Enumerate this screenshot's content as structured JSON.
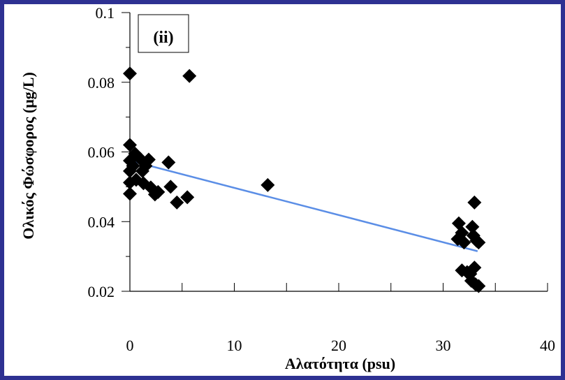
{
  "chart_data": {
    "type": "scatter",
    "panel_label": "(ii)",
    "xlabel": "Αλατότητα (psu)",
    "ylabel": "Ολικός Φώσφορος (μg/L)",
    "xlim": [
      0,
      40
    ],
    "ylim": [
      0.02,
      0.1
    ],
    "x_ticks": [
      0,
      10,
      20,
      30,
      40
    ],
    "y_ticks": [
      0.02,
      0.04,
      0.06,
      0.08,
      0.1
    ],
    "x_tick_labels": [
      "0",
      "10",
      "20",
      "30",
      "40"
    ],
    "y_tick_labels": [
      "0.02",
      "0.04",
      "0.06",
      "0.08",
      "0.1"
    ],
    "marker_color": "#000000",
    "trendline_color": "#5b8ee6",
    "trendline": {
      "x": [
        0,
        33.3
      ],
      "y": [
        0.0575,
        0.0315
      ]
    },
    "points": [
      {
        "x": 0.0,
        "y": 0.0825
      },
      {
        "x": 5.7,
        "y": 0.0818
      },
      {
        "x": 0.0,
        "y": 0.062
      },
      {
        "x": 0.5,
        "y": 0.0595
      },
      {
        "x": 0.0,
        "y": 0.0575
      },
      {
        "x": 0.3,
        "y": 0.056
      },
      {
        "x": 0.0,
        "y": 0.0545
      },
      {
        "x": 1.0,
        "y": 0.058
      },
      {
        "x": 1.5,
        "y": 0.056
      },
      {
        "x": 1.8,
        "y": 0.0578
      },
      {
        "x": 1.2,
        "y": 0.0545
      },
      {
        "x": 0.6,
        "y": 0.052
      },
      {
        "x": 0.0,
        "y": 0.0512
      },
      {
        "x": 0.0,
        "y": 0.048
      },
      {
        "x": 1.3,
        "y": 0.051
      },
      {
        "x": 2.0,
        "y": 0.0498
      },
      {
        "x": 2.4,
        "y": 0.0478
      },
      {
        "x": 2.7,
        "y": 0.0485
      },
      {
        "x": 3.7,
        "y": 0.057
      },
      {
        "x": 3.9,
        "y": 0.05
      },
      {
        "x": 4.5,
        "y": 0.0455
      },
      {
        "x": 5.5,
        "y": 0.047
      },
      {
        "x": 13.2,
        "y": 0.0505
      },
      {
        "x": 31.5,
        "y": 0.0395
      },
      {
        "x": 31.8,
        "y": 0.0368
      },
      {
        "x": 31.4,
        "y": 0.035
      },
      {
        "x": 32.0,
        "y": 0.034
      },
      {
        "x": 32.8,
        "y": 0.0385
      },
      {
        "x": 33.0,
        "y": 0.0455
      },
      {
        "x": 32.9,
        "y": 0.036
      },
      {
        "x": 33.4,
        "y": 0.034
      },
      {
        "x": 33.2,
        "y": 0.0345
      },
      {
        "x": 31.8,
        "y": 0.026
      },
      {
        "x": 32.3,
        "y": 0.0255
      },
      {
        "x": 32.6,
        "y": 0.025
      },
      {
        "x": 33.0,
        "y": 0.0268
      },
      {
        "x": 32.7,
        "y": 0.023
      },
      {
        "x": 33.1,
        "y": 0.022
      },
      {
        "x": 33.4,
        "y": 0.0215
      }
    ]
  }
}
